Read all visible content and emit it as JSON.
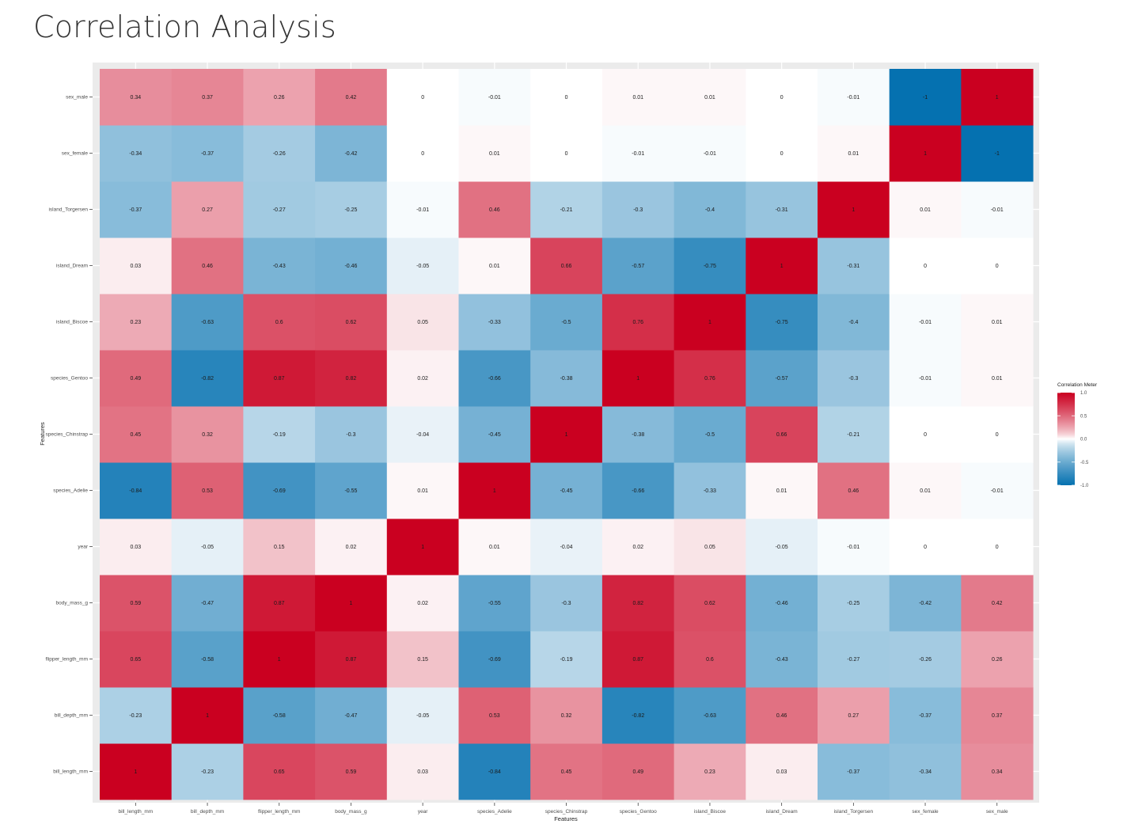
{
  "page": {
    "title": "Correlation Analysis"
  },
  "chart_data": {
    "type": "heatmap",
    "xlabel": "Features",
    "ylabel": "Features",
    "features": [
      "bill_length_mm",
      "bill_depth_mm",
      "flipper_length_mm",
      "body_mass_g",
      "year",
      "species_Adelie",
      "species_Chinstrap",
      "species_Gentoo",
      "island_Biscoe",
      "island_Dream",
      "island_Torgersen",
      "sex_female",
      "sex_male"
    ],
    "matrix": [
      [
        1,
        -0.23,
        0.65,
        0.59,
        0.03,
        -0.84,
        0.45,
        0.49,
        0.23,
        0.03,
        -0.37,
        -0.34,
        0.34
      ],
      [
        -0.23,
        1,
        -0.58,
        -0.47,
        -0.05,
        0.53,
        0.32,
        -0.82,
        -0.63,
        0.46,
        0.27,
        -0.37,
        0.37
      ],
      [
        0.65,
        -0.58,
        1,
        0.87,
        0.15,
        -0.69,
        -0.19,
        0.87,
        0.6,
        -0.43,
        -0.27,
        -0.26,
        0.26
      ],
      [
        0.59,
        -0.47,
        0.87,
        1,
        0.02,
        -0.55,
        -0.3,
        0.82,
        0.62,
        -0.46,
        -0.25,
        -0.42,
        0.42
      ],
      [
        0.03,
        -0.05,
        0.15,
        0.02,
        1,
        0.01,
        -0.04,
        0.02,
        0.05,
        -0.05,
        -0.01,
        0,
        0
      ],
      [
        -0.84,
        0.53,
        -0.69,
        -0.55,
        0.01,
        1,
        -0.45,
        -0.66,
        -0.33,
        0.01,
        0.46,
        0.01,
        -0.01
      ],
      [
        0.45,
        0.32,
        -0.19,
        -0.3,
        -0.04,
        -0.45,
        1,
        -0.38,
        -0.5,
        0.66,
        -0.21,
        0,
        0
      ],
      [
        0.49,
        -0.82,
        0.87,
        0.82,
        0.02,
        -0.66,
        -0.38,
        1,
        0.76,
        -0.57,
        -0.3,
        -0.01,
        0.01
      ],
      [
        0.23,
        -0.63,
        0.6,
        0.62,
        0.05,
        -0.33,
        -0.5,
        0.76,
        1,
        -0.75,
        -0.4,
        -0.01,
        0.01
      ],
      [
        0.03,
        0.46,
        -0.43,
        -0.46,
        -0.05,
        0.01,
        0.66,
        -0.57,
        -0.75,
        1,
        -0.31,
        0,
        0
      ],
      [
        -0.37,
        0.27,
        -0.27,
        -0.25,
        -0.01,
        0.46,
        -0.21,
        -0.3,
        -0.4,
        -0.31,
        1,
        0.01,
        -0.01
      ],
      [
        -0.34,
        -0.37,
        -0.26,
        -0.42,
        0,
        0.01,
        0,
        -0.01,
        -0.01,
        0,
        0.01,
        1,
        -1
      ],
      [
        0.34,
        0.37,
        0.26,
        0.42,
        0,
        -0.01,
        0,
        0.01,
        0.01,
        0,
        -0.01,
        -1,
        1
      ]
    ],
    "legend": {
      "title": "Correlation Meter",
      "position": "right",
      "ticks": [
        {
          "value": 1,
          "label": "1.0"
        },
        {
          "value": 0.5,
          "label": "0.5"
        },
        {
          "value": 0,
          "label": "0.0"
        },
        {
          "value": -0.5,
          "label": "-0.5"
        },
        {
          "value": -1,
          "label": "-1.0"
        }
      ]
    },
    "color_scale": {
      "low": "#0571b0",
      "mid": "#ffffff",
      "high": "#ca0020",
      "limits": [
        -1,
        1
      ]
    },
    "panel_background": "#ebebeb",
    "grid": true
  }
}
